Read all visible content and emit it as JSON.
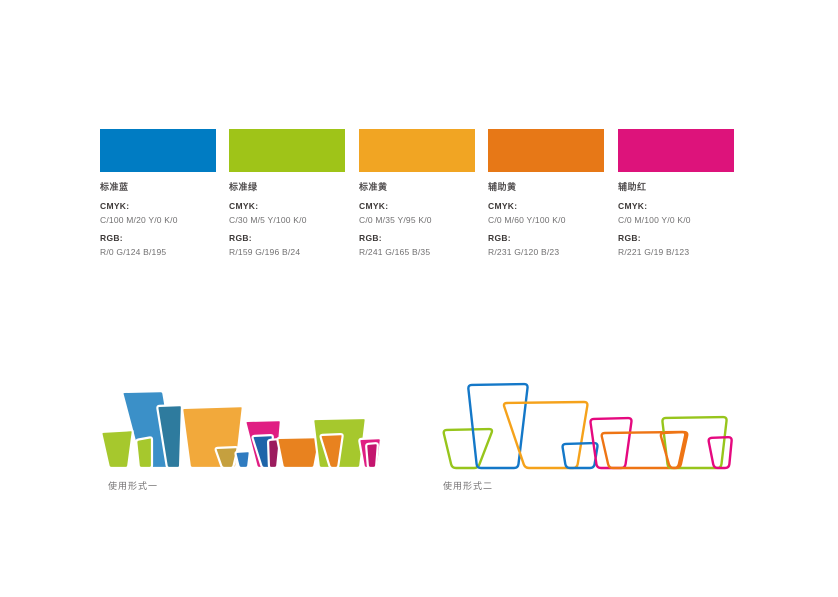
{
  "page": {
    "background": "#ffffff"
  },
  "palette": {
    "swatches": [
      {
        "name": "标准蓝",
        "cmyk_label": "CMYK:",
        "cmyk": "C/100  M/20  Y/0  K/0",
        "rgb_label": "RGB:",
        "rgb": "R/0  G/124  B/195",
        "hex": "#007CC3"
      },
      {
        "name": "标准绿",
        "cmyk_label": "CMYK:",
        "cmyk": "C/30  M/5  Y/100  K/0",
        "rgb_label": "RGB:",
        "rgb": "R/159  G/196  B/24",
        "hex": "#9FC418"
      },
      {
        "name": "标准黄",
        "cmyk_label": "CMYK:",
        "cmyk": "C/0  M/35  Y/95  K/0",
        "rgb_label": "RGB:",
        "rgb": "R/241  G/165  B/35",
        "hex": "#F1A523"
      },
      {
        "name": "辅助黄",
        "cmyk_label": "CMYK:",
        "cmyk": "C/0  M/60  Y/100  K/0",
        "rgb_label": "RGB:",
        "rgb": "R/231  G/120  B/23",
        "hex": "#E77817"
      },
      {
        "name": "辅助红",
        "cmyk_label": "CMYK:",
        "cmyk": "C/0  M/100  Y/0  K/0",
        "rgb_label": "RGB:",
        "rgb": "R/221  G/19  B/123",
        "hex": "#DD137B"
      }
    ]
  },
  "usage": {
    "form1_label": "使用形式一",
    "form2_label": "使用形式二"
  },
  "logo_colors": {
    "blue": "#3B90C8",
    "blue_small": "#2F7BC0",
    "teal": "#2E7B9E",
    "green": "#A6C82D",
    "yellow": "#F2A93B",
    "orange": "#E8821F",
    "magenta": "#E01E83",
    "dark_blue": "#1E64A9",
    "olive": "#C5A03F",
    "dark_magenta": "#9C1C5E",
    "magenta_shade": "#C4156E",
    "outline_green": "#97C51C",
    "outline_blue": "#1478C8",
    "outline_yellow": "#F5A21B",
    "outline_orange": "#EE7414",
    "outline_magenta": "#E5097F",
    "shape_stroke": "#FFFFFF"
  }
}
